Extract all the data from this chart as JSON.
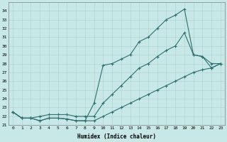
{
  "title": "",
  "xlabel": "Humidex (Indice chaleur)",
  "background_color": "#c8e8e8",
  "grid_color": "#b0d4d4",
  "line_color": "#2a7070",
  "xlim": [
    -0.5,
    23.5
  ],
  "ylim": [
    21,
    35
  ],
  "yticks": [
    21,
    22,
    23,
    24,
    25,
    26,
    27,
    28,
    29,
    30,
    31,
    32,
    33,
    34
  ],
  "xticks": [
    0,
    1,
    2,
    3,
    4,
    5,
    6,
    7,
    8,
    9,
    10,
    11,
    12,
    13,
    14,
    15,
    16,
    17,
    18,
    19,
    20,
    21,
    22,
    23
  ],
  "series1": [
    22.5,
    21.8,
    21.8,
    21.5,
    21.8,
    21.8,
    21.7,
    21.5,
    21.5,
    23.5,
    27.8,
    28.0,
    28.5,
    29.0,
    30.5,
    31.0,
    32.0,
    33.0,
    33.5,
    34.2,
    29.0,
    28.8,
    28.0,
    28.0
  ],
  "series2": [
    22.5,
    21.8,
    21.8,
    22.0,
    22.2,
    22.2,
    22.2,
    22.0,
    22.0,
    22.0,
    23.5,
    24.5,
    25.5,
    26.5,
    27.5,
    28.0,
    28.8,
    29.5,
    30.0,
    31.5,
    29.0,
    28.8,
    27.5,
    28.0
  ],
  "series3": [
    22.5,
    21.8,
    21.8,
    21.5,
    21.8,
    21.8,
    21.7,
    21.5,
    21.5,
    21.5,
    22.0,
    22.5,
    23.0,
    23.5,
    24.0,
    24.5,
    25.0,
    25.5,
    26.0,
    26.5,
    27.0,
    27.3,
    27.5,
    28.0
  ]
}
